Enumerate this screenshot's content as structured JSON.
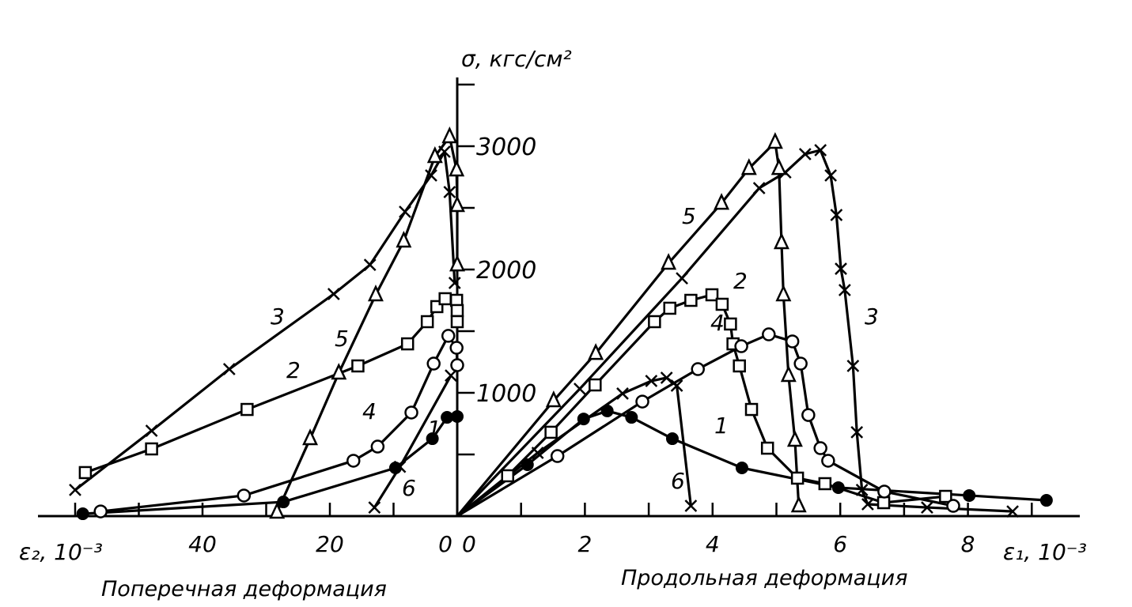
{
  "chart_data": {
    "type": "line",
    "ylabel": "σ, кгс/см²",
    "xlabel_left": "ε₂, 10⁻³",
    "xlabel_right": "ε₁, 10⁻³",
    "caption_left": "Поперечная деформация",
    "caption_right": "Продольная деформация",
    "ylim": [
      0,
      3500
    ],
    "xlim_left": [
      60,
      0
    ],
    "xlim_right": [
      0,
      9.5
    ],
    "y_ticks": [
      500,
      1000,
      1500,
      2000,
      2500,
      3000,
      3500
    ],
    "y_tick_labels": [
      "1000",
      "2000",
      "3000"
    ],
    "left_ticks": [
      60,
      50,
      40,
      30,
      20,
      10
    ],
    "left_tick_labels": [
      "40",
      "20",
      "0"
    ],
    "right_ticks": [
      1,
      2,
      3,
      4,
      5,
      6,
      7,
      8,
      9
    ],
    "right_tick_labels": [
      "0",
      "2",
      "4",
      "6",
      "8"
    ],
    "grid": false,
    "series": [
      {
        "name": "1",
        "marker": "filled-circle",
        "left": [
          [
            58.8,
            19
          ],
          [
            27.3,
            115
          ],
          [
            9.7,
            391
          ],
          [
            3.9,
            628
          ],
          [
            1.6,
            801
          ],
          [
            0,
            808
          ]
        ],
        "right": [
          [
            0,
            0
          ],
          [
            1.1,
            417
          ],
          [
            1.98,
            788
          ],
          [
            2.35,
            853
          ],
          [
            2.73,
            801
          ],
          [
            3.37,
            628
          ],
          [
            4.46,
            391
          ],
          [
            5.97,
            231
          ],
          [
            8.02,
            167
          ],
          [
            9.23,
            128
          ]
        ]
      },
      {
        "name": "2",
        "marker": "square",
        "left": [
          [
            58.4,
            353
          ],
          [
            48.0,
            545
          ],
          [
            33.0,
            865
          ],
          [
            15.6,
            1218
          ],
          [
            7.8,
            1397
          ],
          [
            4.7,
            1577
          ],
          [
            3.2,
            1699
          ],
          [
            1.9,
            1763
          ],
          [
            0.1,
            1750
          ],
          [
            0,
            1667
          ],
          [
            0,
            1577
          ]
        ],
        "right": [
          [
            0,
            0
          ],
          [
            0.79,
            327
          ],
          [
            1.47,
            680
          ],
          [
            2.16,
            1064
          ],
          [
            3.09,
            1577
          ],
          [
            3.33,
            1686
          ],
          [
            3.66,
            1750
          ],
          [
            3.99,
            1795
          ],
          [
            4.15,
            1718
          ],
          [
            4.28,
            1558
          ],
          [
            4.32,
            1397
          ],
          [
            4.42,
            1218
          ],
          [
            4.61,
            865
          ],
          [
            4.86,
            551
          ],
          [
            5.33,
            308
          ],
          [
            5.76,
            263
          ],
          [
            6.68,
            109
          ],
          [
            7.65,
            160
          ]
        ]
      },
      {
        "name": "3",
        "marker": "cross",
        "left": [
          [
            60,
            212
          ],
          [
            48,
            692
          ],
          [
            35.8,
            1192
          ],
          [
            19.4,
            1801
          ],
          [
            13.7,
            2038
          ],
          [
            8.2,
            2468
          ],
          [
            4.1,
            2763
          ],
          [
            2.0,
            2955
          ],
          [
            1.2,
            2628
          ],
          [
            0.4,
            1891
          ]
        ],
        "right": [
          [
            0,
            0
          ],
          [
            1.92,
            1032
          ],
          [
            3.52,
            1929
          ],
          [
            4.73,
            2660
          ],
          [
            5.14,
            2788
          ],
          [
            5.45,
            2936
          ],
          [
            5.69,
            2968
          ],
          [
            5.85,
            2763
          ],
          [
            5.94,
            2442
          ],
          [
            6.01,
            2006
          ],
          [
            6.07,
            1833
          ],
          [
            6.2,
            1218
          ],
          [
            6.26,
            680
          ],
          [
            6.34,
            212
          ],
          [
            6.43,
            96
          ],
          [
            7.36,
            70
          ],
          [
            8.7,
            38
          ]
        ]
      },
      {
        "name": "4",
        "marker": "open-circle",
        "left": [
          [
            56,
            38
          ],
          [
            33.5,
            167
          ],
          [
            16.3,
            449
          ],
          [
            12.5,
            564
          ],
          [
            7.2,
            840
          ],
          [
            3.7,
            1237
          ],
          [
            1.4,
            1462
          ],
          [
            0.1,
            1365
          ],
          [
            0,
            1224
          ]
        ],
        "right": [
          [
            0,
            0
          ],
          [
            1.57,
            487
          ],
          [
            2.9,
            929
          ],
          [
            3.77,
            1192
          ],
          [
            4.45,
            1378
          ],
          [
            4.88,
            1474
          ],
          [
            5.25,
            1417
          ],
          [
            5.38,
            1237
          ],
          [
            5.5,
            820
          ],
          [
            5.69,
            551
          ],
          [
            5.81,
            449
          ],
          [
            6.69,
            199
          ],
          [
            7.77,
            83
          ]
        ]
      },
      {
        "name": "5",
        "marker": "triangle",
        "left": [
          [
            28.3,
            32
          ],
          [
            23.1,
            628
          ],
          [
            18.6,
            1160
          ],
          [
            12.8,
            1795
          ],
          [
            8.4,
            2231
          ],
          [
            3.5,
            2917
          ],
          [
            1.2,
            3077
          ],
          [
            0.1,
            2808
          ],
          [
            0,
            2519
          ],
          [
            0,
            2038
          ]
        ],
        "right": [
          [
            0,
            0
          ],
          [
            1.51,
            936
          ],
          [
            2.17,
            1320
          ],
          [
            3.31,
            2051
          ],
          [
            4.14,
            2538
          ],
          [
            4.57,
            2820
          ],
          [
            4.98,
            3032
          ],
          [
            5.04,
            2820
          ],
          [
            5.08,
            2218
          ],
          [
            5.11,
            1795
          ],
          [
            5.19,
            1141
          ],
          [
            5.29,
            615
          ],
          [
            5.35,
            83
          ]
        ]
      },
      {
        "name": "6",
        "marker": "cross",
        "left": [
          [
            13,
            70
          ],
          [
            9,
            400
          ],
          [
            1,
            1140
          ]
        ],
        "right": [
          [
            0,
            0
          ],
          [
            1.26,
            513
          ],
          [
            2.59,
            994
          ],
          [
            3.04,
            1096
          ],
          [
            3.28,
            1122
          ],
          [
            3.44,
            1058
          ],
          [
            3.66,
            83
          ]
        ]
      }
    ]
  }
}
